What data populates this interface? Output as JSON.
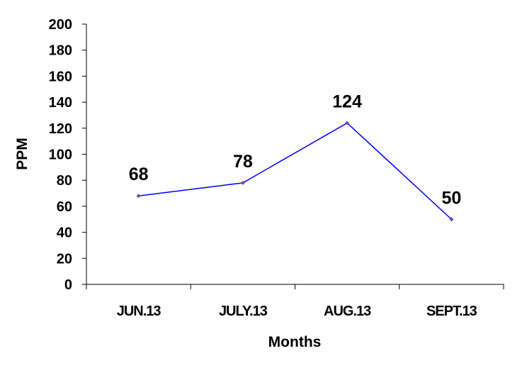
{
  "chart_data": {
    "type": "line",
    "title": "",
    "xlabel": "Months",
    "ylabel": "PPM",
    "categories": [
      "JUN.13",
      "JULY.13",
      "AUG.13",
      "SEPT.13"
    ],
    "series": [
      {
        "values": [
          68,
          78,
          124,
          50
        ]
      }
    ],
    "data_labels": [
      "68",
      "78",
      "124",
      "50"
    ],
    "ylim": [
      0,
      200
    ],
    "yticks": [
      0,
      20,
      40,
      60,
      80,
      100,
      120,
      140,
      160,
      180,
      200
    ],
    "ytick_labels": [
      "0",
      "20",
      "40",
      "60",
      "80",
      "100",
      "120",
      "140",
      "160",
      "180",
      "200"
    ],
    "grid": false,
    "legend": "none",
    "colors": {
      "line": "#0000ff",
      "marker": "#8040a0",
      "text": "#000000",
      "background": "#ffffff"
    }
  }
}
